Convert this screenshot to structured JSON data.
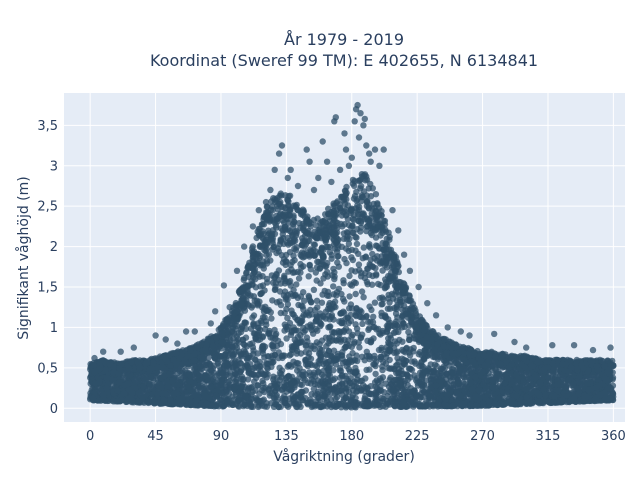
{
  "chart_data": {
    "type": "scatter",
    "title_line1": "År 1979 - 2019",
    "title_line2": "Koordinat (Sweref 99 TM): E 402655, N 6134841",
    "xlabel": "Vågriktning (grader)",
    "ylabel": "Signifikant våghöjd (m)",
    "xlim": [
      -18,
      368
    ],
    "ylim": [
      -0.17,
      3.9
    ],
    "xticks": [
      0,
      45,
      90,
      135,
      180,
      225,
      270,
      315,
      360
    ],
    "xtick_labels": [
      "0",
      "45",
      "90",
      "135",
      "180",
      "225",
      "270",
      "315",
      "360"
    ],
    "yticks": [
      0,
      0.5,
      1,
      1.5,
      2,
      2.5,
      3,
      3.5
    ],
    "ytick_labels": [
      "0",
      "0,5",
      "1",
      "1,5",
      "2",
      "2,5",
      "3",
      "3,5"
    ],
    "grid": true,
    "legend": "none",
    "plot_background": "#e5ecf6",
    "grid_color": "#ffffff",
    "marker_color": "#2f5069",
    "marker_opacity": 0.75,
    "envelope_upper": {
      "x": [
        0,
        10,
        20,
        30,
        40,
        50,
        60,
        70,
        80,
        90,
        100,
        105,
        110,
        115,
        120,
        125,
        130,
        135,
        140,
        145,
        150,
        155,
        160,
        165,
        170,
        175,
        180,
        185,
        190,
        195,
        200,
        205,
        210,
        215,
        220,
        225,
        230,
        240,
        250,
        260,
        270,
        280,
        290,
        300,
        310,
        320,
        330,
        340,
        350,
        360
      ],
      "y": [
        0.55,
        0.6,
        0.55,
        0.6,
        0.6,
        0.65,
        0.7,
        0.75,
        0.85,
        1.0,
        1.3,
        1.6,
        1.9,
        2.2,
        2.45,
        2.6,
        2.65,
        2.7,
        2.6,
        2.5,
        2.45,
        2.45,
        2.4,
        2.5,
        2.6,
        2.7,
        2.85,
        2.95,
        2.9,
        2.75,
        2.5,
        2.2,
        1.9,
        1.6,
        1.4,
        1.2,
        1.05,
        0.9,
        0.8,
        0.75,
        0.7,
        0.7,
        0.65,
        0.65,
        0.6,
        0.6,
        0.6,
        0.6,
        0.6,
        0.6
      ]
    },
    "envelope_lower": {
      "x": [
        0,
        90,
        180,
        270,
        360
      ],
      "y": [
        0.1,
        0.02,
        0.01,
        0.03,
        0.1
      ]
    },
    "outliers": [
      {
        "x": 132,
        "y": 3.25
      },
      {
        "x": 130,
        "y": 3.15
      },
      {
        "x": 127,
        "y": 2.95
      },
      {
        "x": 138,
        "y": 2.95
      },
      {
        "x": 136,
        "y": 2.85
      },
      {
        "x": 149,
        "y": 3.2
      },
      {
        "x": 151,
        "y": 3.05
      },
      {
        "x": 160,
        "y": 3.3
      },
      {
        "x": 163,
        "y": 3.05
      },
      {
        "x": 157,
        "y": 2.85
      },
      {
        "x": 168,
        "y": 3.55
      },
      {
        "x": 169,
        "y": 3.6
      },
      {
        "x": 175,
        "y": 3.4
      },
      {
        "x": 176,
        "y": 3.2
      },
      {
        "x": 178,
        "y": 3.0
      },
      {
        "x": 182,
        "y": 3.55
      },
      {
        "x": 183,
        "y": 3.7
      },
      {
        "x": 184,
        "y": 3.75
      },
      {
        "x": 186,
        "y": 3.65
      },
      {
        "x": 188,
        "y": 3.5
      },
      {
        "x": 189,
        "y": 3.58
      },
      {
        "x": 185,
        "y": 3.35
      },
      {
        "x": 190,
        "y": 3.25
      },
      {
        "x": 192,
        "y": 3.15
      },
      {
        "x": 193,
        "y": 3.05
      },
      {
        "x": 196,
        "y": 3.2
      },
      {
        "x": 199,
        "y": 3.0
      },
      {
        "x": 202,
        "y": 3.2
      },
      {
        "x": 180,
        "y": 3.1
      },
      {
        "x": 172,
        "y": 2.95
      },
      {
        "x": 166,
        "y": 2.8
      },
      {
        "x": 143,
        "y": 2.75
      },
      {
        "x": 154,
        "y": 2.7
      },
      {
        "x": 124,
        "y": 2.7
      },
      {
        "x": 121,
        "y": 2.55
      },
      {
        "x": 208,
        "y": 2.45
      },
      {
        "x": 212,
        "y": 2.2
      },
      {
        "x": 216,
        "y": 1.9
      },
      {
        "x": 220,
        "y": 1.7
      },
      {
        "x": 226,
        "y": 1.5
      },
      {
        "x": 232,
        "y": 1.3
      },
      {
        "x": 238,
        "y": 1.15
      },
      {
        "x": 246,
        "y": 1.0
      },
      {
        "x": 255,
        "y": 0.95
      },
      {
        "x": 261,
        "y": 0.9
      },
      {
        "x": 278,
        "y": 0.92
      },
      {
        "x": 292,
        "y": 0.82
      },
      {
        "x": 300,
        "y": 0.75
      },
      {
        "x": 318,
        "y": 0.78
      },
      {
        "x": 333,
        "y": 0.78
      },
      {
        "x": 346,
        "y": 0.72
      },
      {
        "x": 358,
        "y": 0.75
      },
      {
        "x": 92,
        "y": 1.52
      },
      {
        "x": 96,
        "y": 1.25
      },
      {
        "x": 86,
        "y": 1.2
      },
      {
        "x": 83,
        "y": 1.05
      },
      {
        "x": 72,
        "y": 0.95
      },
      {
        "x": 66,
        "y": 0.95
      },
      {
        "x": 60,
        "y": 0.8
      },
      {
        "x": 52,
        "y": 0.85
      },
      {
        "x": 45,
        "y": 0.9
      },
      {
        "x": 30,
        "y": 0.75
      },
      {
        "x": 21,
        "y": 0.7
      },
      {
        "x": 9,
        "y": 0.7
      },
      {
        "x": 3,
        "y": 0.62
      },
      {
        "x": 101,
        "y": 1.7
      },
      {
        "x": 106,
        "y": 2.0
      },
      {
        "x": 112,
        "y": 2.25
      },
      {
        "x": 116,
        "y": 2.45
      }
    ]
  }
}
